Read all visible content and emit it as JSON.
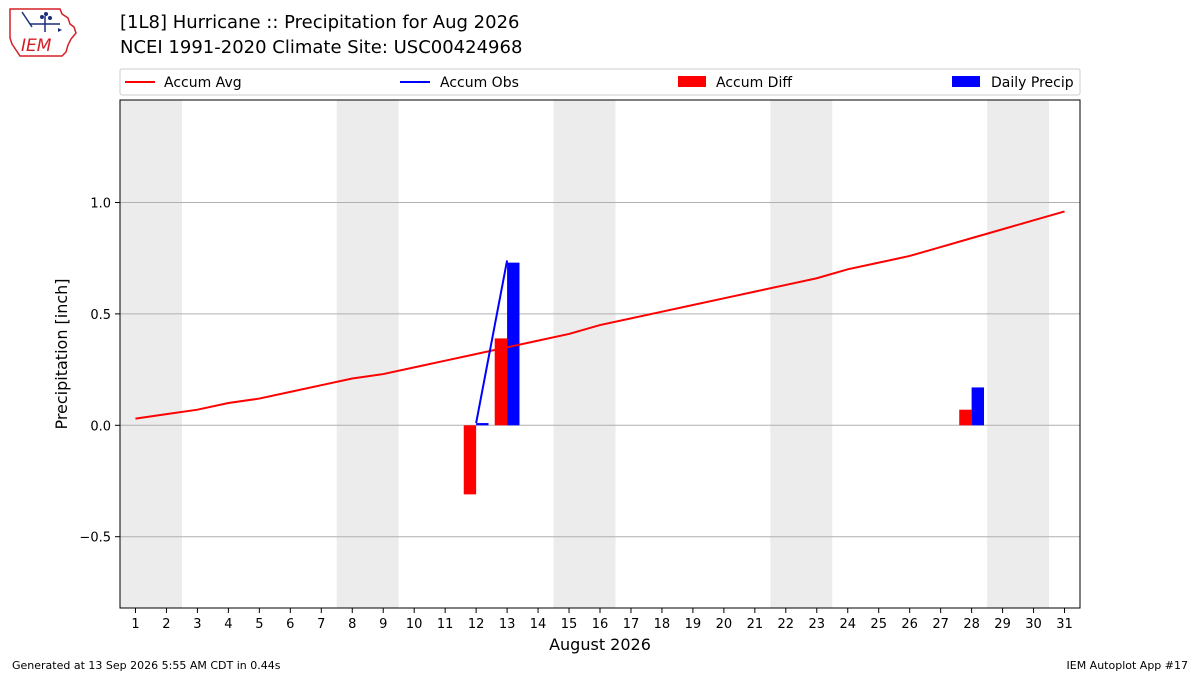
{
  "header": {
    "title_line1": "[1L8] Hurricane :: Precipitation for Aug 2026",
    "title_line2": "NCEI 1991-2020 Climate Site: USC00424968",
    "logo_text": "IEM"
  },
  "footer": {
    "left": "Generated at 13 Sep 2026 5:55 AM CDT in 0.44s",
    "right": "IEM Autoplot App #17"
  },
  "colors": {
    "accum_avg": "#ff0000",
    "accum_obs": "#0000ff",
    "accum_diff": "#ff0000",
    "daily_precip": "#0000ff",
    "weekend_shade": "#ececec",
    "grid": "#b0b0b0",
    "logo": "#d32027"
  },
  "chart_data": {
    "type": "bar",
    "xlabel": "August 2026",
    "ylabel": "Precipitation [inch]",
    "xlim": [
      0.5,
      31.5
    ],
    "ylim": [
      -0.82,
      1.46
    ],
    "x_ticks": [
      1,
      2,
      3,
      4,
      5,
      6,
      7,
      8,
      9,
      10,
      11,
      12,
      13,
      14,
      15,
      16,
      17,
      18,
      19,
      20,
      21,
      22,
      23,
      24,
      25,
      26,
      27,
      28,
      29,
      30,
      31
    ],
    "y_ticks": [
      -0.5,
      0.0,
      0.5,
      1.0
    ],
    "y_tick_labels": [
      "−0.5",
      "0.0",
      "0.5",
      "1.0"
    ],
    "grid": "horizontal",
    "legend_position": "top",
    "weekend_spans": [
      [
        0.5,
        2.5
      ],
      [
        7.5,
        9.5
      ],
      [
        14.5,
        16.5
      ],
      [
        21.5,
        23.5
      ],
      [
        28.5,
        30.5
      ]
    ],
    "series": [
      {
        "name": "Accum Avg",
        "kind": "line",
        "x": [
          1,
          2,
          3,
          4,
          5,
          6,
          7,
          8,
          9,
          10,
          11,
          12,
          13,
          14,
          15,
          16,
          17,
          18,
          19,
          20,
          21,
          22,
          23,
          24,
          25,
          26,
          27,
          28,
          29,
          30,
          31
        ],
        "values": [
          0.03,
          0.05,
          0.07,
          0.1,
          0.12,
          0.15,
          0.18,
          0.21,
          0.23,
          0.26,
          0.29,
          0.32,
          0.35,
          0.38,
          0.41,
          0.45,
          0.48,
          0.51,
          0.54,
          0.57,
          0.6,
          0.63,
          0.66,
          0.7,
          0.73,
          0.76,
          0.8,
          0.84,
          0.88,
          0.92,
          0.96
        ]
      },
      {
        "name": "Accum Obs",
        "kind": "line",
        "x": [
          12,
          13
        ],
        "values": [
          0.01,
          0.74
        ]
      },
      {
        "name": "Accum Diff",
        "kind": "bar",
        "x": [
          12,
          13,
          28
        ],
        "values": [
          -0.31,
          0.39,
          0.07
        ]
      },
      {
        "name": "Daily Precip",
        "kind": "bar",
        "x": [
          12,
          13,
          28
        ],
        "values": [
          0.01,
          0.73,
          0.17
        ]
      }
    ]
  }
}
